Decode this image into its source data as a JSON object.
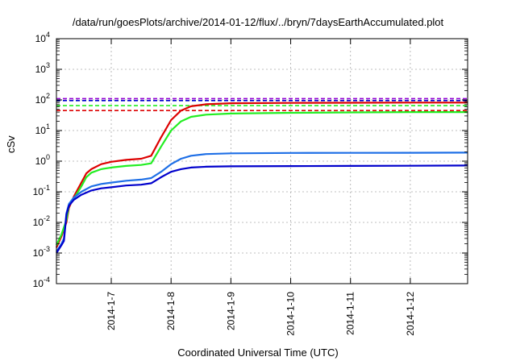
{
  "chart_data": {
    "type": "line",
    "title": "/data/run/goesPlots/archive/2014-01-12/flux/../bryn/7daysEarthAccumulated.plot",
    "xlabel": "Coordinated Universal Time (UTC)",
    "ylabel": "cSv",
    "yscale": "log",
    "ylim": [
      0.0001,
      10000
    ],
    "xlim": [
      "2014-01-06T02:00",
      "2014-01-12T23:00"
    ],
    "grid": true,
    "x_ticks": [
      "2014-1-7",
      "2014-1-8",
      "2014-1-9",
      "2014-1-10",
      "2014-1-11",
      "2014-1-12"
    ],
    "y_ticks": [
      {
        "value": 0.0001,
        "base": "10",
        "exp": "-4"
      },
      {
        "value": 0.001,
        "base": "10",
        "exp": "-3"
      },
      {
        "value": 0.01,
        "base": "10",
        "exp": "-2"
      },
      {
        "value": 0.1,
        "base": "10",
        "exp": "-1"
      },
      {
        "value": 1,
        "base": "10",
        "exp": "0"
      },
      {
        "value": 10,
        "base": "10",
        "exp": "1"
      },
      {
        "value": 100,
        "base": "10",
        "exp": "2"
      },
      {
        "value": 1000,
        "base": "10",
        "exp": "3"
      },
      {
        "value": 10000,
        "base": "10",
        "exp": "4"
      }
    ],
    "thresholds": [
      {
        "color": "#9400d3",
        "value": 110
      },
      {
        "color": "#0000cc",
        "value": 95
      },
      {
        "color": "#22ee22",
        "value": 65
      },
      {
        "color": "#dd0000",
        "value": 45
      }
    ],
    "series": [
      {
        "color": "#dd0000",
        "points": [
          [
            "2014-01-06T02:00",
            0.0015
          ],
          [
            "2014-01-06T04:00",
            0.0035
          ],
          [
            "2014-01-06T06:00",
            0.01
          ],
          [
            "2014-01-06T07:00",
            0.03
          ],
          [
            "2014-01-06T09:00",
            0.07
          ],
          [
            "2014-01-06T12:00",
            0.2
          ],
          [
            "2014-01-06T14:00",
            0.4
          ],
          [
            "2014-01-06T16:00",
            0.55
          ],
          [
            "2014-01-06T20:00",
            0.8
          ],
          [
            "2014-01-07T00:00",
            0.95
          ],
          [
            "2014-01-07T06:00",
            1.1
          ],
          [
            "2014-01-07T12:00",
            1.2
          ],
          [
            "2014-01-07T16:00",
            1.5
          ],
          [
            "2014-01-07T20:00",
            6
          ],
          [
            "2014-01-08T00:00",
            22
          ],
          [
            "2014-01-08T04:00",
            45
          ],
          [
            "2014-01-08T08:00",
            62
          ],
          [
            "2014-01-08T14:00",
            72
          ],
          [
            "2014-01-09T00:00",
            78
          ],
          [
            "2014-01-10T00:00",
            80
          ],
          [
            "2014-01-11T00:00",
            81
          ],
          [
            "2014-01-12T00:00",
            82
          ],
          [
            "2014-01-12T23:00",
            82
          ]
        ]
      },
      {
        "color": "#22ee22",
        "points": [
          [
            "2014-01-06T02:00",
            0.0018
          ],
          [
            "2014-01-06T04:00",
            0.004
          ],
          [
            "2014-01-06T06:00",
            0.012
          ],
          [
            "2014-01-06T07:00",
            0.035
          ],
          [
            "2014-01-06T09:00",
            0.06
          ],
          [
            "2014-01-06T12:00",
            0.15
          ],
          [
            "2014-01-06T14:00",
            0.3
          ],
          [
            "2014-01-06T16:00",
            0.42
          ],
          [
            "2014-01-06T20:00",
            0.55
          ],
          [
            "2014-01-07T00:00",
            0.62
          ],
          [
            "2014-01-07T06:00",
            0.7
          ],
          [
            "2014-01-07T12:00",
            0.75
          ],
          [
            "2014-01-07T16:00",
            0.85
          ],
          [
            "2014-01-07T20:00",
            3
          ],
          [
            "2014-01-08T00:00",
            10
          ],
          [
            "2014-01-08T04:00",
            20
          ],
          [
            "2014-01-08T08:00",
            28
          ],
          [
            "2014-01-08T14:00",
            33
          ],
          [
            "2014-01-09T00:00",
            36
          ],
          [
            "2014-01-10T00:00",
            38
          ],
          [
            "2014-01-11T00:00",
            39
          ],
          [
            "2014-01-12T00:00",
            40
          ],
          [
            "2014-01-12T23:00",
            40
          ]
        ]
      },
      {
        "color": "#1e6fe6",
        "points": [
          [
            "2014-01-06T02:00",
            0.0011
          ],
          [
            "2014-01-06T04:00",
            0.002
          ],
          [
            "2014-01-06T05:00",
            0.003
          ],
          [
            "2014-01-06T06:00",
            0.02
          ],
          [
            "2014-01-06T07:00",
            0.04
          ],
          [
            "2014-01-06T09:00",
            0.065
          ],
          [
            "2014-01-06T12:00",
            0.1
          ],
          [
            "2014-01-06T16:00",
            0.15
          ],
          [
            "2014-01-06T20:00",
            0.18
          ],
          [
            "2014-01-07T00:00",
            0.2
          ],
          [
            "2014-01-07T06:00",
            0.23
          ],
          [
            "2014-01-07T12:00",
            0.25
          ],
          [
            "2014-01-07T16:00",
            0.28
          ],
          [
            "2014-01-07T20:00",
            0.45
          ],
          [
            "2014-01-08T00:00",
            0.8
          ],
          [
            "2014-01-08T04:00",
            1.2
          ],
          [
            "2014-01-08T08:00",
            1.5
          ],
          [
            "2014-01-08T14:00",
            1.7
          ],
          [
            "2014-01-09T00:00",
            1.8
          ],
          [
            "2014-01-10T00:00",
            1.85
          ],
          [
            "2014-01-11T00:00",
            1.87
          ],
          [
            "2014-01-12T00:00",
            1.88
          ],
          [
            "2014-01-12T23:00",
            1.9
          ]
        ]
      },
      {
        "color": "#0000cc",
        "points": [
          [
            "2014-01-06T02:00",
            0.001
          ],
          [
            "2014-01-06T04:00",
            0.0018
          ],
          [
            "2014-01-06T05:00",
            0.0025
          ],
          [
            "2014-01-06T06:00",
            0.018
          ],
          [
            "2014-01-06T07:00",
            0.035
          ],
          [
            "2014-01-06T09:00",
            0.055
          ],
          [
            "2014-01-06T12:00",
            0.08
          ],
          [
            "2014-01-06T16:00",
            0.11
          ],
          [
            "2014-01-06T20:00",
            0.13
          ],
          [
            "2014-01-07T00:00",
            0.14
          ],
          [
            "2014-01-07T06:00",
            0.16
          ],
          [
            "2014-01-07T12:00",
            0.17
          ],
          [
            "2014-01-07T16:00",
            0.19
          ],
          [
            "2014-01-07T20:00",
            0.3
          ],
          [
            "2014-01-08T00:00",
            0.45
          ],
          [
            "2014-01-08T04:00",
            0.55
          ],
          [
            "2014-01-08T08:00",
            0.62
          ],
          [
            "2014-01-08T14:00",
            0.66
          ],
          [
            "2014-01-09T00:00",
            0.68
          ],
          [
            "2014-01-10T00:00",
            0.69
          ],
          [
            "2014-01-11T00:00",
            0.7
          ],
          [
            "2014-01-12T00:00",
            0.71
          ],
          [
            "2014-01-12T23:00",
            0.72
          ]
        ]
      }
    ]
  }
}
